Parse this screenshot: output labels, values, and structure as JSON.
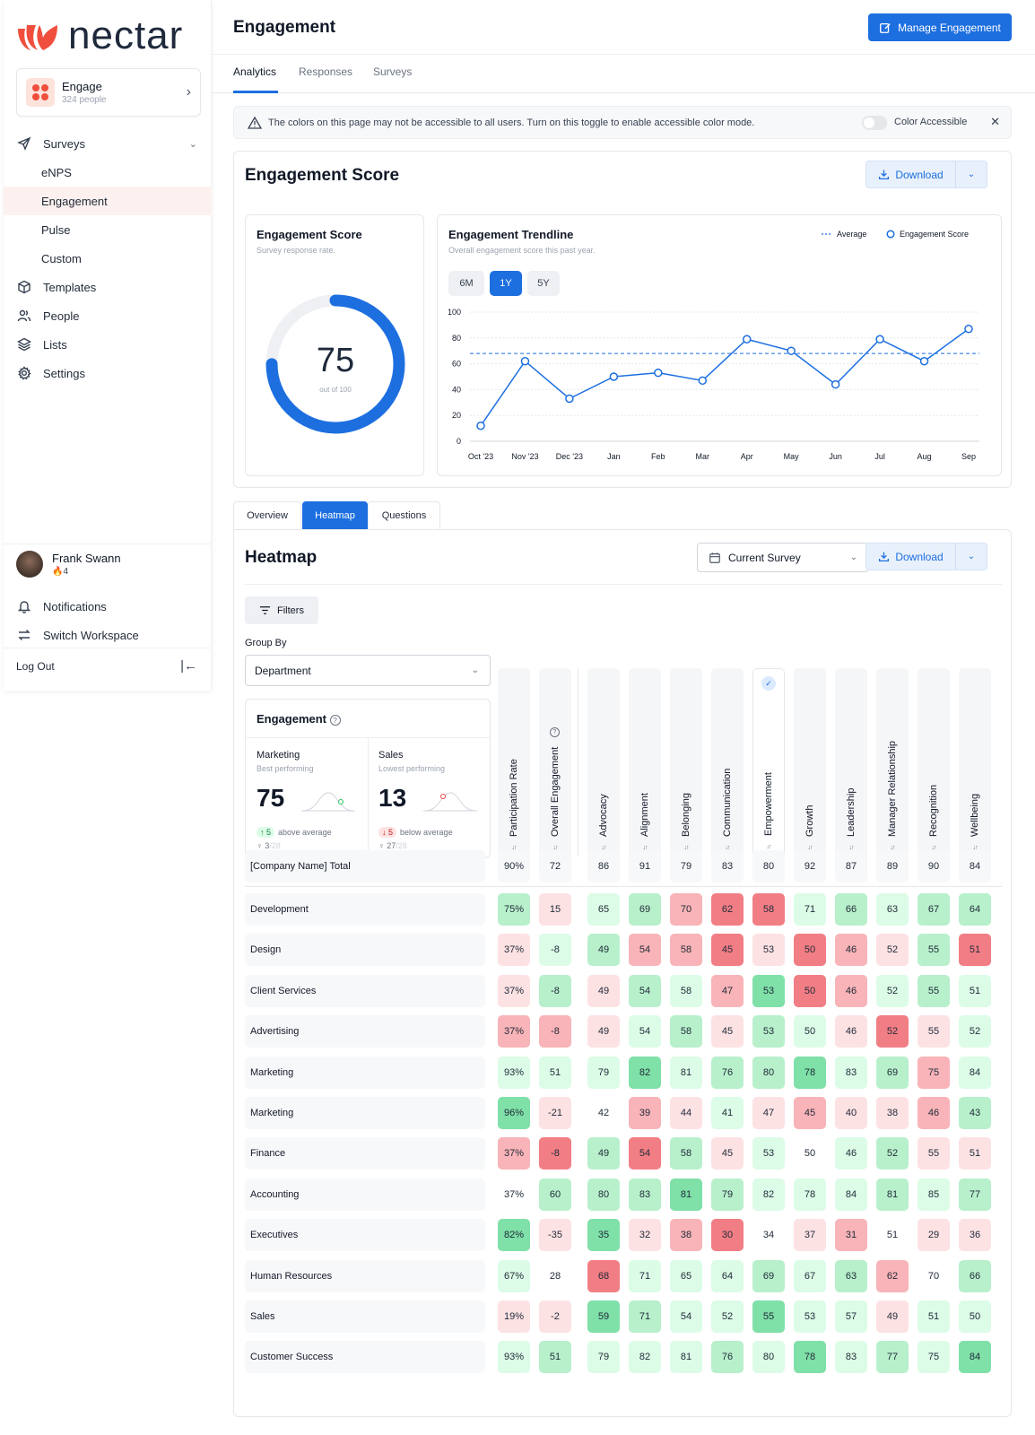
{
  "brand": {
    "name": "nectar",
    "color": "#f04f3d"
  },
  "workspace": {
    "name": "Engage",
    "people": "324 people"
  },
  "nav": {
    "surveys": "Surveys",
    "sub": [
      "eNPS",
      "Engagement",
      "Pulse",
      "Custom"
    ],
    "templates": "Templates",
    "people": "People",
    "lists": "Lists",
    "settings": "Settings"
  },
  "user": {
    "name": "Frank Swann",
    "streak": "4"
  },
  "bottom_nav": {
    "notifications": "Notifications",
    "switch": "Switch Workspace",
    "logout": "Log Out"
  },
  "header": {
    "title": "Engagement",
    "manage_button": "Manage Engagement"
  },
  "tabs": [
    "Analytics",
    "Responses",
    "Surveys"
  ],
  "alert": {
    "message": "The colors on this page may not be accessible to all users. Turn on this toggle to enable accessible color mode.",
    "toggle_label": "Color Accessible"
  },
  "score_section": {
    "title": "Engagement Score",
    "download": "Download"
  },
  "gauge": {
    "title": "Engagement Score",
    "subtitle": "Survey response rate.",
    "value": 75,
    "max": 100,
    "caption": "out of 100"
  },
  "trend": {
    "title": "Engagement Trendline",
    "subtitle": "Overall engagement score this past year.",
    "ranges": [
      "6M",
      "1Y",
      "5Y"
    ],
    "active_range": "1Y",
    "legend_average": "Average",
    "legend_score": "Engagement Score"
  },
  "chart_data": {
    "type": "line",
    "title": "Engagement Trendline",
    "categories": [
      "Oct '23",
      "Nov '23",
      "Dec '23",
      "Jan",
      "Feb",
      "Mar",
      "Apr",
      "May",
      "Jun",
      "Jul",
      "Aug",
      "Sep"
    ],
    "series": [
      {
        "name": "Engagement Score",
        "values": [
          12,
          62,
          33,
          50,
          53,
          47,
          79,
          70,
          44,
          79,
          62,
          87
        ]
      }
    ],
    "average": 68,
    "yticks": [
      "0",
      "20",
      "40",
      "60",
      "80",
      "100"
    ],
    "ylim": [
      0,
      100
    ],
    "grid": true,
    "color": "#1d6fe0"
  },
  "sub_tabs": [
    "Overview",
    "Heatmap",
    "Questions"
  ],
  "heatmap": {
    "title": "Heatmap",
    "survey_select": "Current Survey",
    "download": "Download",
    "filters": "Filters",
    "group_by_label": "Group By",
    "group_by_value": "Department",
    "engagement_card": {
      "title": "Engagement",
      "best": {
        "name": "Marketing",
        "label": "Best performing",
        "value": "75",
        "delta": "5",
        "delta_text": "above average",
        "rank": "3",
        "rank_total": "/28"
      },
      "worst": {
        "name": "Sales",
        "label": "Lowest performing",
        "value": "13",
        "delta": "5",
        "delta_text": "below average",
        "rank": "27",
        "rank_total": "/28"
      }
    },
    "columns": [
      "Participation Rate",
      "Overall Engagement",
      "Advocacy",
      "Alignment",
      "Belonging",
      "Communication",
      "Empowerment",
      "Growth",
      "Leadership",
      "Manager Relationship",
      "Recognition",
      "Wellbeing"
    ],
    "sort_glyph": "↓↑",
    "total": {
      "label": "[Company Name] Total",
      "values": [
        "90%",
        "72",
        "86",
        "91",
        "79",
        "83",
        "80",
        "92",
        "87",
        "89",
        "90",
        "84"
      ]
    },
    "rows": [
      {
        "label": "Development",
        "values": [
          "75%",
          "15",
          "65",
          "69",
          "70",
          "62",
          "58",
          "71",
          "66",
          "63",
          "67",
          "64"
        ],
        "levels": [
          2,
          -1,
          1,
          2,
          -2,
          -3,
          -3,
          1,
          2,
          1,
          2,
          2
        ]
      },
      {
        "label": "Design",
        "values": [
          "37%",
          "-8",
          "49",
          "54",
          "58",
          "45",
          "53",
          "50",
          "46",
          "52",
          "55",
          "51"
        ],
        "levels": [
          -1,
          1,
          2,
          -2,
          -2,
          -3,
          -1,
          -3,
          -2,
          -1,
          2,
          -3
        ]
      },
      {
        "label": "Client Services",
        "values": [
          "37%",
          "-8",
          "49",
          "54",
          "58",
          "47",
          "53",
          "50",
          "46",
          "52",
          "55",
          "51"
        ],
        "levels": [
          -1,
          2,
          -1,
          2,
          1,
          -2,
          3,
          -3,
          -2,
          1,
          2,
          1
        ]
      },
      {
        "label": "Advertising",
        "values": [
          "37%",
          "-8",
          "49",
          "54",
          "58",
          "45",
          "53",
          "50",
          "46",
          "52",
          "55",
          "52"
        ],
        "levels": [
          -2,
          -2,
          -1,
          1,
          2,
          -1,
          2,
          1,
          -1,
          -3,
          -1,
          1
        ]
      },
      {
        "label": "Marketing",
        "values": [
          "93%",
          "51",
          "79",
          "82",
          "81",
          "76",
          "80",
          "78",
          "83",
          "69",
          "75",
          "84"
        ],
        "levels": [
          1,
          1,
          1,
          3,
          1,
          2,
          2,
          3,
          1,
          2,
          -2,
          1
        ]
      },
      {
        "label": "Marketing",
        "values": [
          "96%",
          "-21",
          "42",
          "39",
          "44",
          "41",
          "47",
          "45",
          "40",
          "38",
          "46",
          "43"
        ],
        "levels": [
          3,
          -1,
          0,
          -2,
          -1,
          1,
          -1,
          -2,
          -1,
          -1,
          -2,
          2
        ]
      },
      {
        "label": "Finance",
        "values": [
          "37%",
          "-8",
          "49",
          "54",
          "58",
          "45",
          "53",
          "50",
          "46",
          "52",
          "55",
          "51"
        ],
        "levels": [
          -2,
          -3,
          2,
          -3,
          2,
          -1,
          1,
          0,
          1,
          2,
          -1,
          -1
        ]
      },
      {
        "label": "Accounting",
        "values": [
          "37%",
          "60",
          "80",
          "83",
          "81",
          "79",
          "82",
          "78",
          "84",
          "81",
          "85",
          "77"
        ],
        "levels": [
          0,
          2,
          2,
          2,
          3,
          2,
          1,
          1,
          1,
          2,
          1,
          2
        ]
      },
      {
        "label": "Executives",
        "values": [
          "82%",
          "-35",
          "35",
          "32",
          "38",
          "30",
          "34",
          "37",
          "31",
          "51",
          "29",
          "36"
        ],
        "levels": [
          3,
          -1,
          3,
          -1,
          -2,
          -3,
          0,
          -1,
          -2,
          0,
          -1,
          -1
        ]
      },
      {
        "label": "Human Resources",
        "values": [
          "67%",
          "28",
          "68",
          "71",
          "65",
          "64",
          "69",
          "67",
          "63",
          "62",
          "70",
          "66"
        ],
        "levels": [
          1,
          0,
          -3,
          1,
          1,
          1,
          2,
          1,
          2,
          -2,
          0,
          2
        ]
      },
      {
        "label": "Sales",
        "values": [
          "19%",
          "-2",
          "59",
          "71",
          "54",
          "52",
          "55",
          "53",
          "57",
          "49",
          "51",
          "50"
        ],
        "levels": [
          -1,
          -1,
          3,
          2,
          1,
          1,
          3,
          1,
          1,
          -1,
          1,
          1
        ]
      },
      {
        "label": "Customer Success",
        "values": [
          "93%",
          "51",
          "79",
          "82",
          "81",
          "76",
          "80",
          "78",
          "83",
          "77",
          "75",
          "84"
        ],
        "levels": [
          1,
          2,
          1,
          1,
          1,
          2,
          1,
          3,
          1,
          2,
          1,
          3
        ]
      }
    ]
  },
  "colors": {
    "accent": "#1d6fe0",
    "pos1": "#dcfce7",
    "pos2": "#b8f0cc",
    "pos3": "#7fe0a8",
    "neg1": "#fde2e4",
    "neg2": "#f8b4b8",
    "neg3": "#f27e85",
    "neutral": "#ffffff"
  }
}
